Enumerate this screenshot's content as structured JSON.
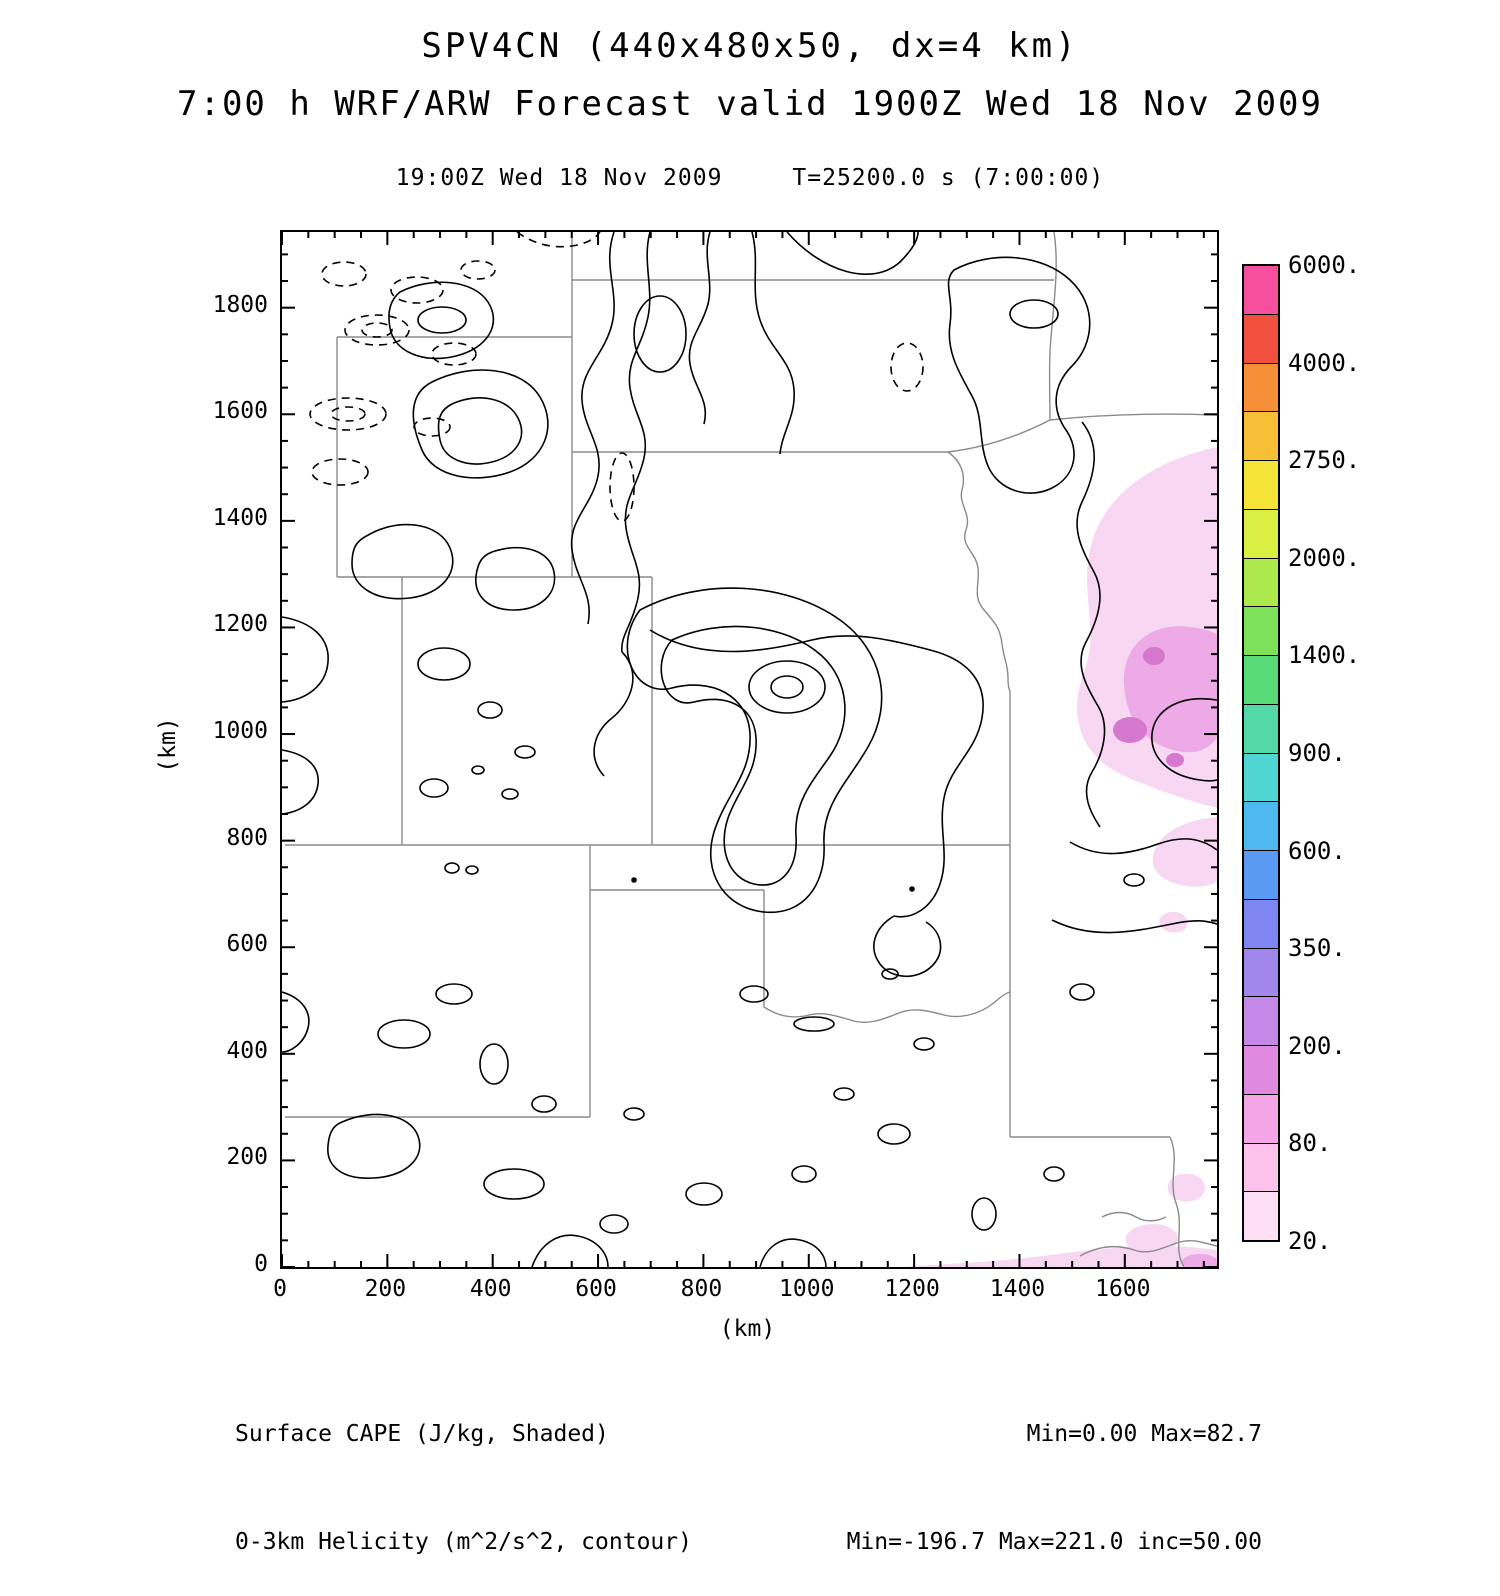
{
  "header": {
    "title": "SPV4CN (440x480x50, dx=4 km)",
    "subtitle": "7:00 h WRF/ARW Forecast valid 1900Z Wed 18 Nov 2009",
    "valid_time": "19:00Z Wed 18 Nov 2009",
    "model_time": "T=25200.0 s (7:00:00)"
  },
  "chart_data": {
    "type": "heatmap",
    "title": "SPV4CN (440x480x50, dx=4 km)",
    "subtitle": "7:00 h WRF/ARW Forecast valid 1900Z Wed 18 Nov 2009",
    "valid_time": "19:00Z Wed 18 Nov 2009",
    "model_time": "T=25200.0 s (7:00:00)",
    "xlabel": "(km)",
    "ylabel": "(km)",
    "xlim": [
      0,
      1775
    ],
    "ylim": [
      0,
      1940
    ],
    "x_ticks": [
      0,
      200,
      400,
      600,
      800,
      1000,
      1200,
      1400,
      1600
    ],
    "y_ticks": [
      0,
      200,
      400,
      600,
      800,
      1000,
      1200,
      1400,
      1600,
      1800
    ],
    "minor_tick_interval": 50,
    "grid": false,
    "shaded_field": {
      "label": "Surface CAPE (J/kg, Shaded)",
      "units": "J/kg",
      "min": 0.0,
      "max": 82.7
    },
    "contour_field": {
      "label": "0-3km Helicity (m^2/s^2, contour)",
      "units": "m^2/s^2",
      "min": -196.7,
      "max": 221.0,
      "inc": 50.0,
      "negative_style": "dashed",
      "positive_style": "solid"
    },
    "colorbar": {
      "position": "right",
      "labels": [
        "20.",
        "80.",
        "200.",
        "350.",
        "600.",
        "900.",
        "1400.",
        "2000.",
        "2750.",
        "4000.",
        "6000."
      ],
      "label_boundaries": [
        0,
        2,
        4,
        6,
        8,
        10,
        12,
        14,
        16,
        18,
        20
      ],
      "colors": [
        "#ffdff5",
        "#fdc2ec",
        "#f3a5e6",
        "#e089e0",
        "#c488e6",
        "#a186ec",
        "#7e86f1",
        "#5a9af3",
        "#4db9ef",
        "#4fd5d2",
        "#53d8a8",
        "#58da78",
        "#7de25a",
        "#ace94c",
        "#daef42",
        "#f4e438",
        "#f6bf35",
        "#f59038",
        "#f2503e",
        "#f54f9e"
      ]
    },
    "shade_colors": {
      "light": "#f8d7f3",
      "mid": "#edaae6",
      "dark": "#d678ce"
    },
    "shaded_regions_km": [
      {
        "x": [
          1480,
          1775
        ],
        "y": [
          860,
          1530
        ],
        "value": "20-80 J/kg blob, eastern Nebraska / western Iowa"
      },
      {
        "x": [
          1180,
          1775
        ],
        "y": [
          0,
          30
        ],
        "value": "shallow CAPE along southern domain edge"
      },
      {
        "x": [
          1590,
          1775
        ],
        "y": [
          0,
          170
        ],
        "value": "patches near bottom-right (Gulf coast) corner"
      }
    ],
    "map_region": "Central US state borders: WY CO NM SD NE KS OK TX-panhandle IA MO AR LA"
  },
  "footer": {
    "shaded_label": "Surface CAPE (J/kg, Shaded)",
    "contour_label": "0-3km Helicity (m^2/s^2, contour)",
    "shaded_stats": "Min=0.00 Max=82.7",
    "contour_stats": "Min=-196.7 Max=221.0 inc=50.00"
  }
}
